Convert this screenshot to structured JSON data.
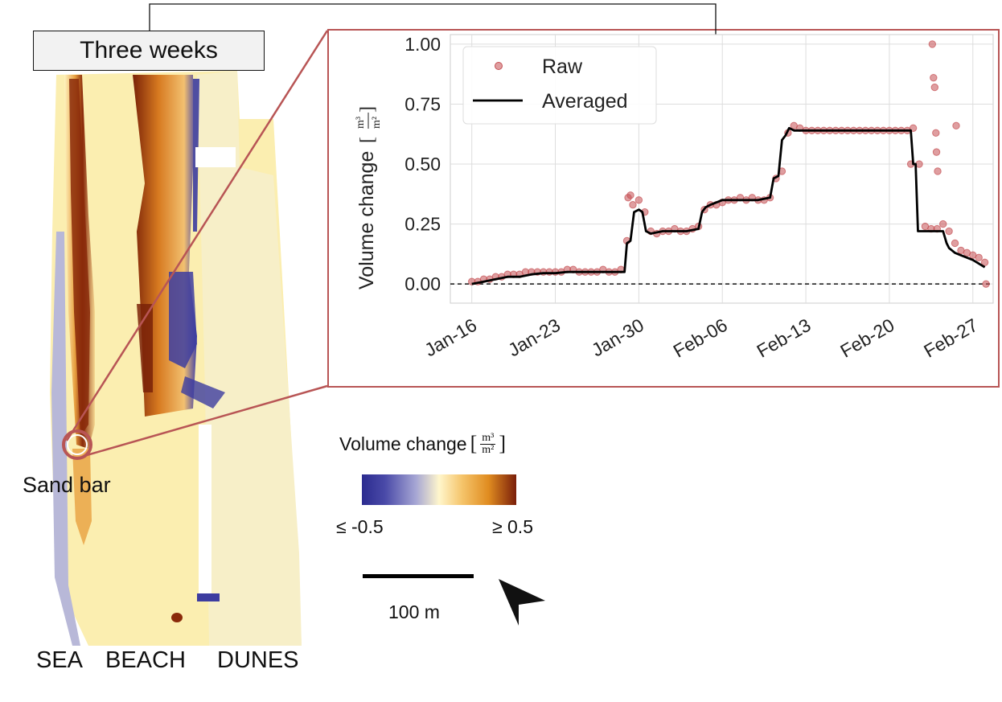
{
  "map": {
    "period_label": "Three weeks",
    "regions": [
      "SEA",
      "BEACH",
      "DUNES"
    ],
    "marker_label": "Sand bar",
    "colors": {
      "negative": "#2b2b8f",
      "neutral": "#fff6cc",
      "positive": "#7a1e0a",
      "marker": "#b85555"
    }
  },
  "legend": {
    "title": "Volume change",
    "unit_num": "m³",
    "unit_den": "m²",
    "min_label": "≤ -0.5",
    "max_label": "≥ 0.5"
  },
  "scale": {
    "label": "100 m"
  },
  "icons": {
    "north_arrow": "north-arrow-icon"
  },
  "chart_data": {
    "type": "line",
    "ylabel": "Volume change",
    "ylabel_unit_num": "m³",
    "ylabel_unit_den": "m²",
    "ylim": [
      -0.08,
      1.04
    ],
    "yticks": [
      0.0,
      0.25,
      0.5,
      0.75,
      1.0
    ],
    "ytick_labels": [
      "0.00",
      "0.25",
      "0.50",
      "0.75",
      "1.00"
    ],
    "xlim": [
      -1.8,
      43.7
    ],
    "xticks": [
      0,
      7,
      14,
      21,
      28,
      35,
      42
    ],
    "xtick_labels": [
      "Jan-16",
      "Jan-23",
      "Jan-30",
      "Feb-06",
      "Feb-13",
      "Feb-20",
      "Feb-27"
    ],
    "grid": true,
    "legend_position": "top-left",
    "reference_line": 0.0,
    "series": [
      {
        "name": "Raw",
        "kind": "scatter",
        "color": "#c44e52",
        "x": [
          0.0,
          0.5,
          1.0,
          1.5,
          2.0,
          2.5,
          3.0,
          3.5,
          4.0,
          4.5,
          5.0,
          5.5,
          6.0,
          6.5,
          7.0,
          7.5,
          8.0,
          8.5,
          9.0,
          9.5,
          10.0,
          10.5,
          11.0,
          11.5,
          12.0,
          12.5,
          13.0,
          13.5,
          14.0,
          14.5,
          15.0,
          15.5,
          16.0,
          16.5,
          17.0,
          17.5,
          18.0,
          18.5,
          19.0,
          19.5,
          20.0,
          20.5,
          21.0,
          21.5,
          22.0,
          22.5,
          23.0,
          23.5,
          24.0,
          24.5,
          25.0,
          25.5,
          26.0,
          26.5,
          27.0,
          27.5,
          28.0,
          28.5,
          29.0,
          29.5,
          30.0,
          30.5,
          31.0,
          31.5,
          32.0,
          32.5,
          33.0,
          33.5,
          34.0,
          34.5,
          35.0,
          35.5,
          36.0,
          36.5,
          37.0,
          37.5,
          38.0,
          38.5,
          39.0,
          39.5,
          40.0,
          40.5,
          41.0,
          41.5,
          42.0,
          42.5,
          43.0,
          13.1,
          13.3,
          36.8,
          38.6,
          38.7,
          38.8,
          38.9,
          38.95,
          39.05,
          40.6,
          43.1
        ],
        "y": [
          0.01,
          0.01,
          0.02,
          0.02,
          0.03,
          0.03,
          0.04,
          0.04,
          0.04,
          0.05,
          0.05,
          0.05,
          0.05,
          0.05,
          0.05,
          0.05,
          0.06,
          0.06,
          0.05,
          0.05,
          0.05,
          0.05,
          0.06,
          0.05,
          0.05,
          0.06,
          0.18,
          0.33,
          0.35,
          0.3,
          0.22,
          0.21,
          0.22,
          0.22,
          0.23,
          0.22,
          0.22,
          0.23,
          0.24,
          0.31,
          0.33,
          0.33,
          0.34,
          0.35,
          0.35,
          0.36,
          0.35,
          0.36,
          0.35,
          0.35,
          0.36,
          0.44,
          0.47,
          0.63,
          0.66,
          0.65,
          0.64,
          0.64,
          0.64,
          0.64,
          0.64,
          0.64,
          0.64,
          0.64,
          0.64,
          0.64,
          0.64,
          0.64,
          0.64,
          0.64,
          0.64,
          0.64,
          0.64,
          0.64,
          0.65,
          0.5,
          0.24,
          0.23,
          0.23,
          0.25,
          0.22,
          0.17,
          0.14,
          0.13,
          0.12,
          0.11,
          0.09,
          0.36,
          0.37,
          0.5,
          1.0,
          0.86,
          0.82,
          0.63,
          0.55,
          0.47,
          0.66,
          0.0
        ]
      },
      {
        "name": "Averaged",
        "kind": "line",
        "color": "#000000",
        "x": [
          0.0,
          1.0,
          2.0,
          3.0,
          4.0,
          5.0,
          6.0,
          7.0,
          8.0,
          9.0,
          10.0,
          11.0,
          12.0,
          12.8,
          13.0,
          13.3,
          13.6,
          14.0,
          14.3,
          14.6,
          15.0,
          16.0,
          17.0,
          18.0,
          19.0,
          19.3,
          19.6,
          20.0,
          21.0,
          22.0,
          23.0,
          24.0,
          25.0,
          25.3,
          25.7,
          26.0,
          26.3,
          26.6,
          27.0,
          28.0,
          29.0,
          30.0,
          31.0,
          32.0,
          33.0,
          34.0,
          35.0,
          36.0,
          36.8,
          37.0,
          37.2,
          37.4,
          38.0,
          39.0,
          39.5,
          39.8,
          40.0,
          40.5,
          41.0,
          42.0,
          43.0
        ],
        "y": [
          0.0,
          0.01,
          0.02,
          0.03,
          0.03,
          0.04,
          0.045,
          0.045,
          0.05,
          0.05,
          0.05,
          0.05,
          0.05,
          0.05,
          0.17,
          0.18,
          0.3,
          0.31,
          0.3,
          0.22,
          0.21,
          0.22,
          0.22,
          0.22,
          0.23,
          0.3,
          0.32,
          0.33,
          0.35,
          0.35,
          0.35,
          0.35,
          0.36,
          0.44,
          0.45,
          0.6,
          0.62,
          0.65,
          0.64,
          0.64,
          0.64,
          0.64,
          0.64,
          0.64,
          0.64,
          0.64,
          0.64,
          0.64,
          0.64,
          0.5,
          0.5,
          0.22,
          0.22,
          0.22,
          0.22,
          0.17,
          0.15,
          0.13,
          0.12,
          0.1,
          0.07
        ]
      }
    ]
  }
}
